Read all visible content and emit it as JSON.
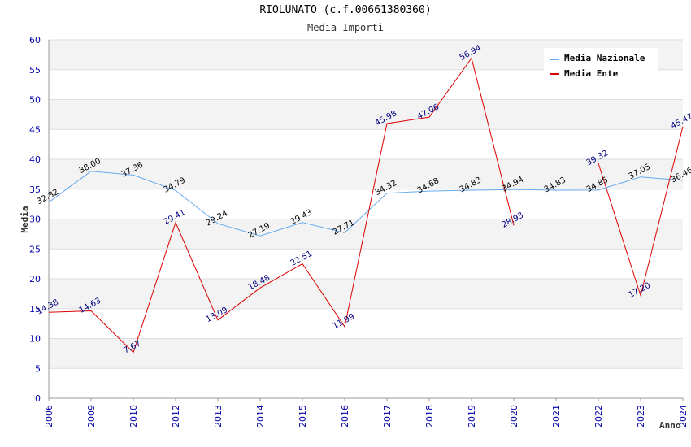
{
  "chart_data": {
    "type": "line",
    "title": "RIOLUNATO (c.f.00661380360)",
    "subtitle": "Media Importi",
    "xlabel": "Anno",
    "ylabel": "Media",
    "ylim": [
      0,
      60
    ],
    "yticks": [
      0,
      5,
      10,
      15,
      20,
      25,
      30,
      35,
      40,
      45,
      50,
      55,
      60
    ],
    "categories": [
      "2006",
      "2009",
      "2010",
      "2012",
      "2013",
      "2014",
      "2015",
      "2016",
      "2017",
      "2018",
      "2019",
      "2020",
      "2021",
      "2022",
      "2023",
      "2024"
    ],
    "series": [
      {
        "name": "Media Nazionale",
        "color": "#66aaee",
        "values": [
          32.82,
          38.0,
          37.36,
          34.79,
          29.24,
          27.19,
          29.43,
          27.71,
          34.32,
          34.68,
          34.83,
          34.94,
          34.83,
          34.85,
          37.05,
          36.46
        ],
        "labels": [
          "32.82",
          "38.00",
          "37.36",
          "34.79",
          "29.24",
          "27.19",
          "29.43",
          "27.71",
          "34.32",
          "34.68",
          "34.83",
          "34.94",
          "34.83",
          "34.85",
          "37.05",
          "36.46"
        ]
      },
      {
        "name": "Media Ente",
        "color": "#dd0000",
        "values": [
          14.38,
          14.63,
          7.67,
          29.41,
          13.09,
          18.48,
          22.51,
          11.99,
          45.98,
          47.06,
          56.94,
          28.93,
          null,
          39.32,
          17.2,
          45.47
        ],
        "labels": [
          "14.38",
          "14.63",
          "7.67",
          "29.41",
          "13.09",
          "18.48",
          "22.51",
          "11.99",
          "45.98",
          "47.06",
          "56.94",
          "28.93",
          null,
          "39.32",
          "17.20",
          "45.47"
        ]
      }
    ],
    "grid": true,
    "legend": "top-right"
  }
}
